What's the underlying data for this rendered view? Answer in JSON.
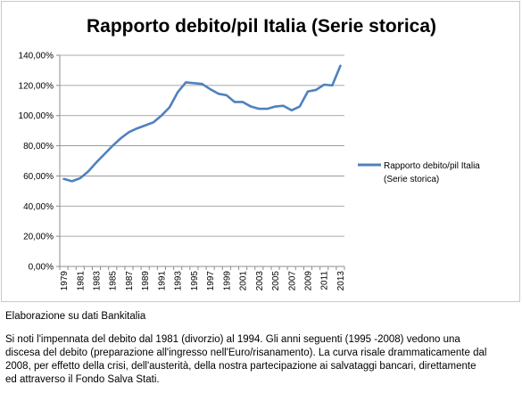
{
  "chart_data": {
    "type": "line",
    "title": "Rapporto debito/pil Italia (Serie storica)",
    "xlabel": "",
    "ylabel": "",
    "ylim": [
      0,
      140
    ],
    "y_ticks": [
      "0,00%",
      "20,00%",
      "40,00%",
      "60,00%",
      "80,00%",
      "100,00%",
      "120,00%",
      "140,00%"
    ],
    "x_tick_labels": [
      "1979",
      "1981",
      "1983",
      "1985",
      "1987",
      "1989",
      "1991",
      "1993",
      "1995",
      "1997",
      "1999",
      "2001",
      "2003",
      "2005",
      "2007",
      "2009",
      "2011",
      "2013"
    ],
    "grid": "horizontal",
    "legend_position": "right",
    "x": [
      1979,
      1980,
      1981,
      1982,
      1983,
      1984,
      1985,
      1986,
      1987,
      1988,
      1989,
      1990,
      1991,
      1992,
      1993,
      1994,
      1995,
      1996,
      1997,
      1998,
      1999,
      2000,
      2001,
      2002,
      2003,
      2004,
      2005,
      2006,
      2007,
      2008,
      2009,
      2010,
      2011,
      2012,
      2013
    ],
    "series": [
      {
        "name": "Rapporto debito/pil Italia (Serie storica)",
        "color": "#4f81bd",
        "values": [
          58,
          56.5,
          58.5,
          63,
          69,
          74.5,
          80,
          85,
          89,
          91.5,
          93.5,
          95.5,
          100,
          105.5,
          115.5,
          122,
          121.5,
          121,
          117.5,
          114.5,
          113.5,
          109,
          109,
          106,
          104.5,
          104.5,
          106,
          106.5,
          103.5,
          106,
          116,
          117,
          120.5,
          120,
          133
        ]
      }
    ]
  },
  "source_note": "Elaborazione su dati Bankitalia",
  "caption_lines": [
    "Si noti l'impennata del debito dal 1981 (divorzio) al 1994. Gli anni seguenti (1995 -2008) vedono una",
    "discesa del debito (preparazione all'ingresso nell'Euro/risanamento). La curva risale drammaticamente dal",
    "2008, per effetto della crisi, dell'austerità, della nostra partecipazione ai salvataggi bancari, direttamente",
    "ed attraverso il Fondo Salva Stati."
  ]
}
